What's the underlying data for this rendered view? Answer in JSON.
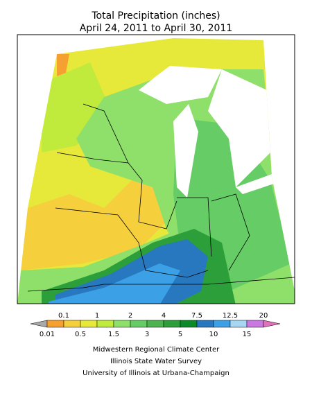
{
  "title": [
    "Total Precipitation (inches)",
    "April 24, 2011 to April 30, 2011"
  ],
  "legend": {
    "boundaries": [
      0.01,
      0.1,
      0.5,
      1,
      1.5,
      2,
      3,
      4,
      5,
      7.5,
      10,
      12.5,
      15,
      20
    ],
    "colors": [
      "#a8a8a8",
      "#f5a030",
      "#f5cf3c",
      "#e6e83a",
      "#c0ea3c",
      "#8ee06a",
      "#66cc66",
      "#4cb350",
      "#2c9e3a",
      "#0c8a2a",
      "#2878c0",
      "#3ca0e6",
      "#a6d6f2",
      "#c878e0",
      "#e070b8"
    ]
  },
  "credits": [
    "Midwestern Regional Climate Center",
    "Illinois State Water Survey",
    "University of Illinois at Urbana-Champaign"
  ]
}
